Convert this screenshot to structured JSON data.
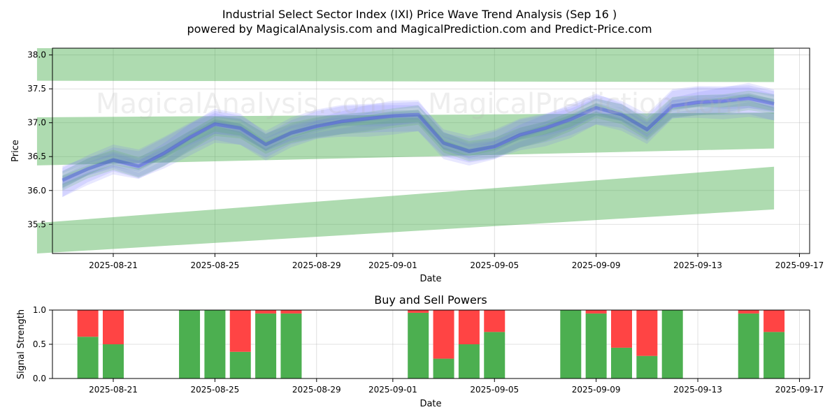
{
  "chart_data": [
    {
      "type": "line",
      "title": "Industrial Select Sector Index (IXI) Price Wave Trend Analysis (Sep 16 )",
      "subtitle": "powered by MagicalAnalysis.com and MagicalPrediction.com and Predict-Price.com",
      "xlabel": "Date",
      "ylabel": "Price",
      "grid": true,
      "x_ticks": [
        "2025-08-21",
        "2025-08-25",
        "2025-08-29",
        "2025-09-01",
        "2025-09-05",
        "2025-09-09",
        "2025-09-13",
        "2025-09-17"
      ],
      "y_ticks": [
        "35.5",
        "36.0",
        "36.5",
        "37.0",
        "37.5",
        "38.0"
      ],
      "ylim": [
        35.07,
        38.1
      ],
      "series": [
        {
          "name": "price-wave",
          "color": "#0000ff",
          "dates": [
            "2025-08-19",
            "2025-08-20",
            "2025-08-21",
            "2025-08-22",
            "2025-08-23",
            "2025-08-24",
            "2025-08-25",
            "2025-08-26",
            "2025-08-27",
            "2025-08-28",
            "2025-08-29",
            "2025-08-30",
            "2025-08-31",
            "2025-09-01",
            "2025-09-02",
            "2025-09-03",
            "2025-09-04",
            "2025-09-05",
            "2025-09-06",
            "2025-09-07",
            "2025-09-08",
            "2025-09-09",
            "2025-09-10",
            "2025-09-11",
            "2025-09-12",
            "2025-09-13",
            "2025-09-14",
            "2025-09-15",
            "2025-09-16"
          ],
          "values": [
            36.15,
            36.32,
            36.45,
            36.36,
            36.55,
            36.78,
            36.98,
            36.92,
            36.68,
            36.85,
            36.95,
            37.02,
            37.06,
            37.1,
            37.12,
            36.7,
            36.58,
            36.65,
            36.82,
            36.92,
            37.05,
            37.22,
            37.12,
            36.9,
            37.25,
            37.3,
            37.32,
            37.36,
            37.28
          ]
        }
      ],
      "bands": [
        {
          "name": "upper-channel",
          "color": "#4caf50",
          "dates": [
            "2025-08-18",
            "2025-09-16"
          ],
          "top": [
            38.1,
            38.1
          ],
          "bottom": [
            37.62,
            37.6
          ]
        },
        {
          "name": "middle-channel",
          "color": "#4caf50",
          "dates": [
            "2025-08-18",
            "2025-09-16"
          ],
          "top": [
            37.08,
            37.15
          ],
          "bottom": [
            36.37,
            36.62
          ]
        },
        {
          "name": "rising-channel",
          "color": "#4caf50",
          "dates": [
            "2025-08-18",
            "2025-09-16"
          ],
          "top": [
            35.52,
            36.35
          ],
          "bottom": [
            35.07,
            35.72
          ]
        }
      ]
    },
    {
      "type": "bar",
      "title": "Buy and Sell Powers",
      "xlabel": "Date",
      "ylabel": "Signal Strength",
      "ylim": [
        0,
        1
      ],
      "x_ticks": [
        "2025-08-21",
        "2025-08-25",
        "2025-08-29",
        "2025-09-01",
        "2025-09-05",
        "2025-09-09",
        "2025-09-13",
        "2025-09-17"
      ],
      "y_ticks": [
        "0.0",
        "0.5",
        "1.0"
      ],
      "categories": [
        "2025-08-20",
        "2025-08-21",
        "2025-08-24",
        "2025-08-25",
        "2025-08-26",
        "2025-08-27",
        "2025-08-28",
        "2025-09-02",
        "2025-09-03",
        "2025-09-04",
        "2025-09-05",
        "2025-09-08",
        "2025-09-09",
        "2025-09-10",
        "2025-09-11",
        "2025-09-12",
        "2025-09-15",
        "2025-09-16"
      ],
      "series": [
        {
          "name": "Buy",
          "color": "#4caf50",
          "values": [
            0.61,
            0.5,
            1.0,
            1.0,
            0.39,
            0.95,
            0.95,
            0.96,
            0.29,
            0.5,
            0.68,
            1.0,
            0.95,
            0.45,
            0.33,
            1.0,
            0.95,
            0.68
          ]
        },
        {
          "name": "Sell",
          "color": "#ff4444",
          "values": [
            0.39,
            0.5,
            0.0,
            0.0,
            0.61,
            0.05,
            0.05,
            0.04,
            0.71,
            0.5,
            0.32,
            0.0,
            0.05,
            0.55,
            0.67,
            0.0,
            0.05,
            0.32
          ]
        }
      ]
    }
  ],
  "watermarks": [
    "MagicalAnalysis.com",
    "MagicalPrediction.com"
  ]
}
